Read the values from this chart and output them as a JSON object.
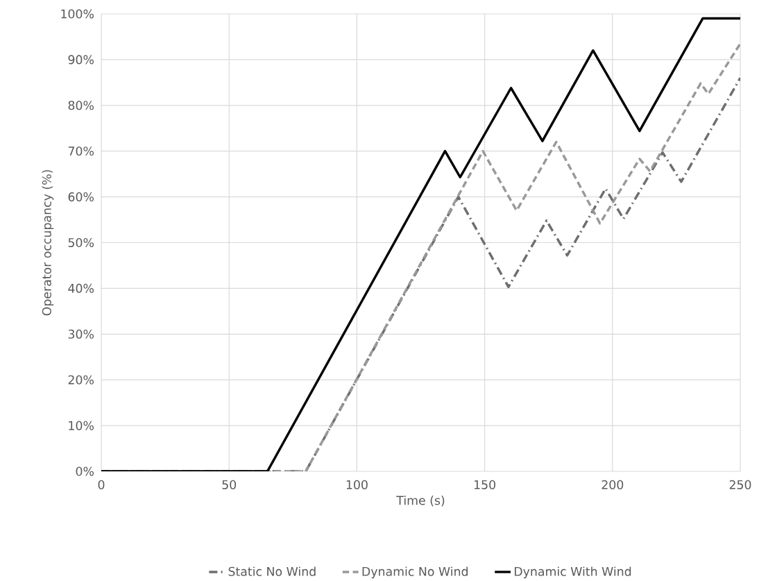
{
  "chart_data": {
    "type": "line",
    "xlabel": "Time (s)",
    "ylabel": "Operator occupancy (%)",
    "xlim": [
      0,
      250
    ],
    "xticks": [
      0,
      50,
      100,
      150,
      200,
      250
    ],
    "ylim": [
      0,
      100
    ],
    "yticks": [
      {
        "value": 0,
        "label": "0%"
      },
      {
        "value": 10,
        "label": "10%"
      },
      {
        "value": 20,
        "label": "20%"
      },
      {
        "value": 30,
        "label": "30%"
      },
      {
        "value": 40,
        "label": "40%"
      },
      {
        "value": 50,
        "label": "50%"
      },
      {
        "value": 60,
        "label": "60%"
      },
      {
        "value": 70,
        "label": "70%"
      },
      {
        "value": 80,
        "label": "80%"
      },
      {
        "value": 90,
        "label": "90%"
      },
      {
        "value": 100,
        "label": "100%"
      }
    ],
    "grid": true,
    "legend": "bottom",
    "marker": "none",
    "series": [
      {
        "name": "Static No Wind",
        "color": "#6e6e6e",
        "line_style": "dashdot",
        "x": [
          0,
          80,
          139.7,
          159.3,
          174.2,
          182.3,
          197.3,
          204.3,
          219.6,
          226.9,
          250
        ],
        "values": [
          0,
          0,
          60,
          40.3,
          54.8,
          47.2,
          61.8,
          55.2,
          69.7,
          63.3,
          86
        ]
      },
      {
        "name": "Dynamic No Wind",
        "color": "#999999",
        "line_style": "dashed",
        "x": [
          0,
          80,
          149.3,
          162.5,
          178,
          195.1,
          210.6,
          214.7,
          234.5,
          237.5,
          250
        ],
        "values": [
          0,
          0,
          70,
          57,
          72,
          54.2,
          68.3,
          65.6,
          84.8,
          82.5,
          93.5
        ]
      },
      {
        "name": "Dynamic With Wind",
        "color": "#000000",
        "line_style": "solid",
        "x": [
          0,
          65,
          134.5,
          140.4,
          160.3,
          172.6,
          192.4,
          210.6,
          235.3,
          250
        ],
        "values": [
          0,
          0,
          70,
          64.3,
          83.8,
          72.2,
          92,
          74.4,
          99,
          99
        ]
      }
    ]
  }
}
